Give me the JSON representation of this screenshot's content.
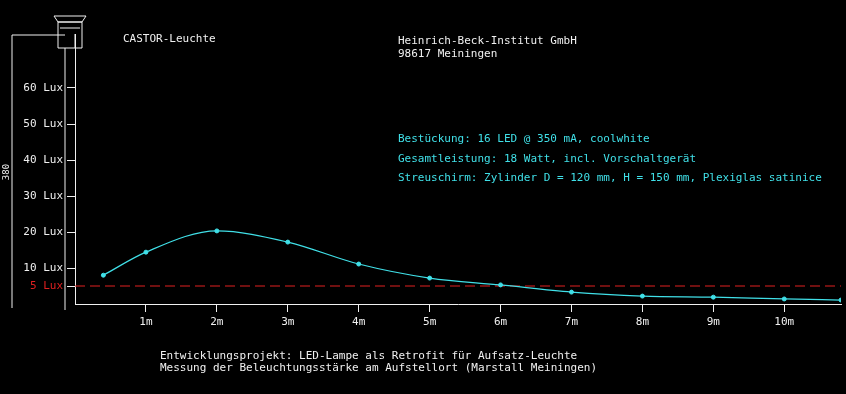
{
  "chart_data": {
    "type": "line",
    "title": "CASTOR-Leuchte",
    "header": [
      "Heinrich-Beck-Institut GmbH",
      "98617 Meiningen"
    ],
    "notes": [
      "Bestückung: 16 LED @ 350 mA, coolwhite",
      "Gesamtleistung: 18 Watt, incl. Vorschaltgerät",
      "Streuschirm: Zylinder D = 120 mm, H = 150 mm, Plexiglas satinice"
    ],
    "footer": [
      "Entwicklungsprojekt: LED-Lampe als Retrofit für Aufsatz-Leuchte",
      "Messung der Beleuchtungsstärke am Aufstellort (Marstall Meiningen)"
    ],
    "dimension_label": "380",
    "x": [
      0.4,
      1,
      2,
      3,
      4,
      5,
      6,
      7,
      8,
      9,
      10,
      10.8
    ],
    "values": [
      8,
      14.4,
      20.3,
      17.2,
      11.1,
      7.2,
      5.3,
      3.3,
      2.2,
      1.9,
      1.4,
      1.1
    ],
    "color": "#40e0e8",
    "marker": "circle",
    "hlines": [
      {
        "value": 5,
        "color": "#e02020",
        "line_style": "dashed"
      }
    ],
    "xlim": [
      0,
      10.8
    ],
    "xticks": [
      {
        "value": 1,
        "label": "1m"
      },
      {
        "value": 2,
        "label": "2m"
      },
      {
        "value": 3,
        "label": "3m"
      },
      {
        "value": 4,
        "label": "4m"
      },
      {
        "value": 5,
        "label": "5m"
      },
      {
        "value": 6,
        "label": "6m"
      },
      {
        "value": 7,
        "label": "7m"
      },
      {
        "value": 8,
        "label": "8m"
      },
      {
        "value": 9,
        "label": "9m"
      },
      {
        "value": 10,
        "label": "10m"
      }
    ],
    "ylim": [
      0,
      75
    ],
    "yticks": [
      {
        "value": 5,
        "label": "5 Lux"
      },
      {
        "value": 10,
        "label": "10 Lux"
      },
      {
        "value": 20,
        "label": "20 Lux"
      },
      {
        "value": 30,
        "label": "30 Lux"
      },
      {
        "value": 40,
        "label": "40 Lux"
      },
      {
        "value": 50,
        "label": "50 Lux"
      },
      {
        "value": 60,
        "label": "60 Lux"
      }
    ],
    "grid": false
  }
}
